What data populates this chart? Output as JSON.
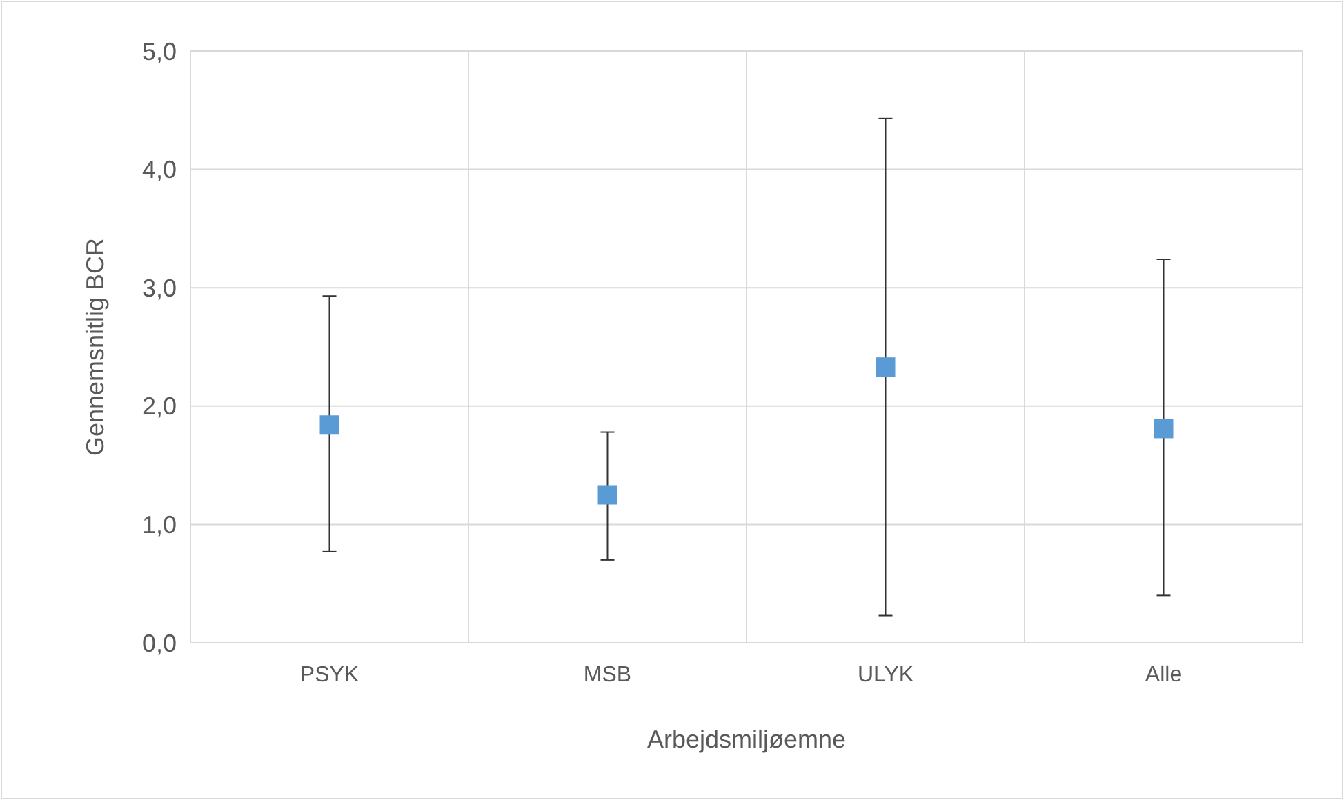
{
  "chart_data": {
    "type": "scatter",
    "xlabel": "Arbejdsmiljøemne",
    "ylabel": "Gennemsnitlig BCR",
    "categories": [
      "PSYK",
      "MSB",
      "ULYK",
      "Alle"
    ],
    "values": [
      1.84,
      1.25,
      2.33,
      1.81
    ],
    "errors": [
      [
        0.77,
        2.93
      ],
      [
        0.7,
        1.78
      ],
      [
        0.23,
        4.43
      ],
      [
        0.4,
        3.24
      ]
    ],
    "color": "#5b9bd5",
    "marker": "square",
    "grid": true,
    "ylim": [
      0,
      5
    ],
    "yticks": [
      {
        "value": 0,
        "label": "0,0"
      },
      {
        "value": 1,
        "label": "1,0"
      },
      {
        "value": 2,
        "label": "2,0"
      },
      {
        "value": 3,
        "label": "3,0"
      },
      {
        "value": 4,
        "label": "4,0"
      },
      {
        "value": 5,
        "label": "5,0"
      }
    ]
  }
}
